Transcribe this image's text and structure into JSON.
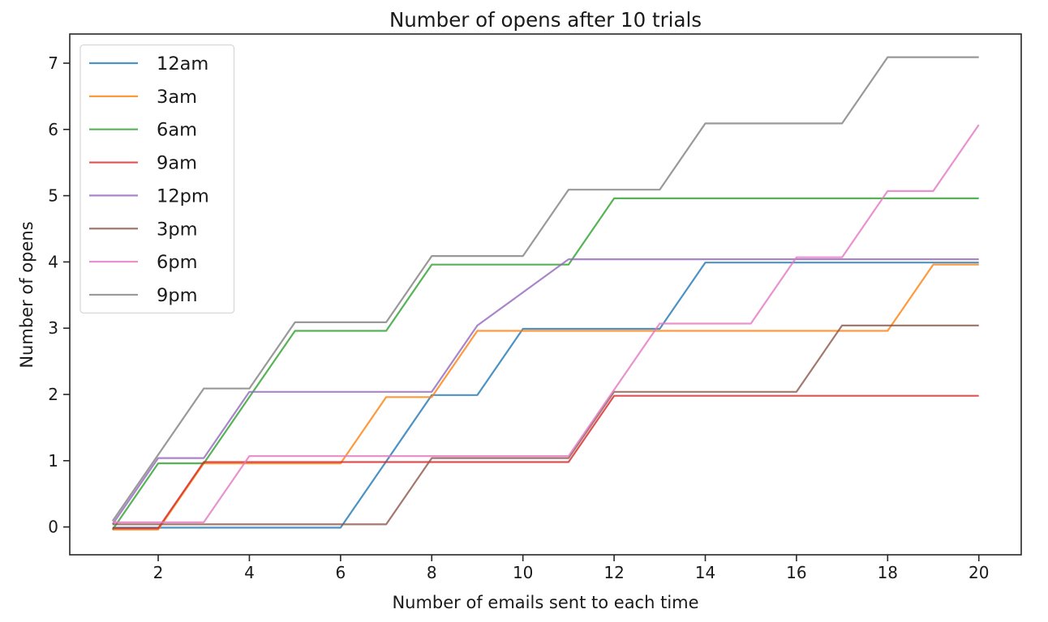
{
  "figure": {
    "title": "Number of opens after 10 trials",
    "background_color": "#ffffff",
    "spine_color": "#262626",
    "text_color": "#1a1a1a"
  },
  "chart_data": {
    "type": "line",
    "title": "Number of opens after 10 trials",
    "xlabel": "Number of emails sent to each time",
    "ylabel": "Number of opens",
    "x": [
      1,
      2,
      3,
      4,
      5,
      6,
      7,
      8,
      9,
      10,
      11,
      12,
      13,
      14,
      15,
      16,
      17,
      18,
      19,
      20
    ],
    "xticks": [
      2,
      4,
      6,
      8,
      10,
      12,
      14,
      16,
      18,
      20
    ],
    "yticks": [
      0,
      1,
      2,
      3,
      4,
      5,
      6,
      7
    ],
    "xlim": [
      0.06,
      20.93
    ],
    "ylim": [
      -0.42,
      7.44
    ],
    "grid": false,
    "legend_position": "upper-left",
    "line_alpha": 0.8,
    "line_width": 2.2,
    "series": [
      {
        "name": "12am",
        "color": "#1f77b4",
        "offset": -0.01,
        "values": [
          0,
          0,
          0,
          0,
          0,
          0,
          1,
          2,
          2,
          3,
          3,
          3,
          3,
          4,
          4,
          4,
          4,
          4,
          4,
          4
        ]
      },
      {
        "name": "3am",
        "color": "#ff7f0e",
        "offset": -0.04,
        "values": [
          0,
          0,
          1,
          1,
          1,
          1,
          2,
          2,
          3,
          3,
          3,
          3,
          3,
          3,
          3,
          3,
          3,
          3,
          4,
          4
        ]
      },
      {
        "name": "6am",
        "color": "#2ca02c",
        "offset": -0.04,
        "values": [
          0,
          1,
          1,
          2,
          3,
          3,
          3,
          4,
          4,
          4,
          4,
          5,
          5,
          5,
          5,
          5,
          5,
          5,
          5,
          5
        ]
      },
      {
        "name": "9am",
        "color": "#d62728",
        "offset": -0.02,
        "values": [
          0,
          0,
          1,
          1,
          1,
          1,
          1,
          1,
          1,
          1,
          1,
          2,
          2,
          2,
          2,
          2,
          2,
          2,
          2,
          2
        ]
      },
      {
        "name": "12pm",
        "color": "#9467bd",
        "offset": 0.04,
        "values": [
          0,
          1,
          1,
          2,
          2,
          2,
          2,
          2,
          3,
          3.5,
          4,
          4,
          4,
          4,
          4,
          4,
          4,
          4,
          4,
          4
        ]
      },
      {
        "name": "3pm",
        "color": "#8c564b",
        "offset": 0.04,
        "values": [
          0,
          0,
          0,
          0,
          0,
          0,
          0,
          1,
          1,
          1,
          1,
          2,
          2,
          2,
          2,
          2,
          3,
          3,
          3,
          3
        ]
      },
      {
        "name": "6pm",
        "color": "#e377c2",
        "offset": 0.07,
        "values": [
          0,
          0,
          0,
          1,
          1,
          1,
          1,
          1,
          1,
          1,
          1,
          2,
          3,
          3,
          3,
          4,
          4,
          5,
          5,
          6
        ]
      },
      {
        "name": "9pm",
        "color": "#7f7f7f",
        "offset": 0.09,
        "values": [
          0,
          1,
          2,
          2,
          3,
          3,
          3,
          4,
          4,
          4,
          5,
          5,
          5,
          6,
          6,
          6,
          6,
          7,
          7,
          7
        ]
      }
    ],
    "legend_labels": [
      "12am",
      "3am",
      "6am",
      "9am",
      "12pm",
      "3pm",
      "6pm",
      "9pm"
    ]
  }
}
